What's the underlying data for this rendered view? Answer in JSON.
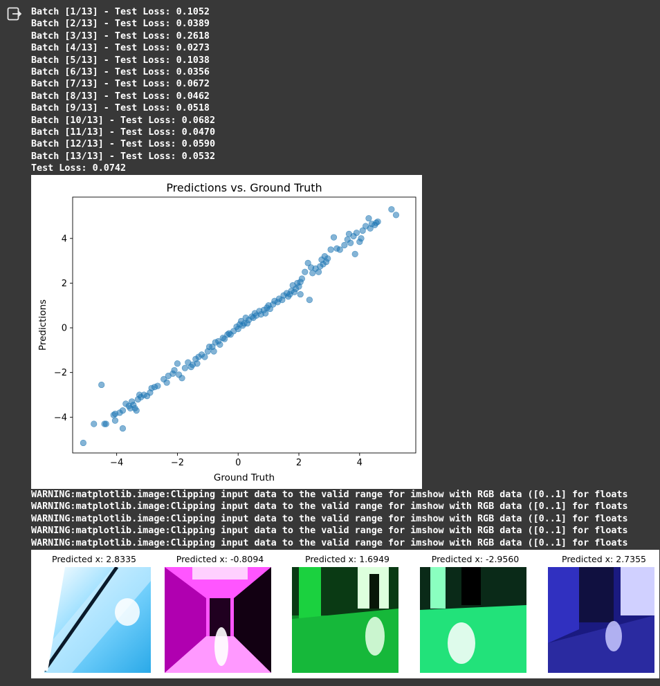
{
  "log_lines": [
    "Batch [1/13] - Test Loss: 0.1052",
    "Batch [2/13] - Test Loss: 0.0389",
    "Batch [3/13] - Test Loss: 0.2618",
    "Batch [4/13] - Test Loss: 0.0273",
    "Batch [5/13] - Test Loss: 0.1038",
    "Batch [6/13] - Test Loss: 0.0356",
    "Batch [7/13] - Test Loss: 0.0672",
    "Batch [8/13] - Test Loss: 0.0462",
    "Batch [9/13] - Test Loss: 0.0518",
    "Batch [10/13] - Test Loss: 0.0682",
    "Batch [11/13] - Test Loss: 0.0470",
    "Batch [12/13] - Test Loss: 0.0590",
    "Batch [13/13] - Test Loss: 0.0532",
    "Test Loss: 0.0742"
  ],
  "warnings": [
    "WARNING:matplotlib.image:Clipping input data to the valid range for imshow with RGB data ([0..1] for floats",
    "WARNING:matplotlib.image:Clipping input data to the valid range for imshow with RGB data ([0..1] for floats",
    "WARNING:matplotlib.image:Clipping input data to the valid range for imshow with RGB data ([0..1] for floats",
    "WARNING:matplotlib.image:Clipping input data to the valid range for imshow with RGB data ([0..1] for floats",
    "WARNING:matplotlib.image:Clipping input data to the valid range for imshow with RGB data ([0..1] for floats"
  ],
  "chart_data": {
    "type": "scatter",
    "title": "Predictions vs. Ground Truth",
    "xlabel": "Ground Truth",
    "ylabel": "Predictions",
    "xlim": [
      -5.45,
      5.85
    ],
    "ylim": [
      -5.6,
      5.85
    ],
    "xticks": [
      -4,
      -2,
      0,
      2,
      4
    ],
    "yticks": [
      -4,
      -2,
      0,
      2,
      4
    ],
    "xtick_labels": [
      "−4",
      "−2",
      "0",
      "2",
      "4"
    ],
    "ytick_labels": [
      "−4",
      "−2",
      "0",
      "2",
      "4"
    ],
    "grid": false,
    "point_color": "#1f77b4",
    "points": [
      [
        -5.1,
        -5.15
      ],
      [
        -4.75,
        -4.3
      ],
      [
        -4.5,
        -2.55
      ],
      [
        -4.4,
        -4.3
      ],
      [
        -4.35,
        -4.3
      ],
      [
        -4.1,
        -3.9
      ],
      [
        -4.05,
        -4.15
      ],
      [
        -4.05,
        -3.85
      ],
      [
        -3.9,
        -3.8
      ],
      [
        -3.8,
        -4.5
      ],
      [
        -3.8,
        -3.7
      ],
      [
        -3.7,
        -3.4
      ],
      [
        -3.6,
        -3.5
      ],
      [
        -3.55,
        -3.6
      ],
      [
        -3.5,
        -3.3
      ],
      [
        -3.45,
        -3.45
      ],
      [
        -3.4,
        -3.6
      ],
      [
        -3.35,
        -3.7
      ],
      [
        -3.3,
        -3.2
      ],
      [
        -3.25,
        -3.0
      ],
      [
        -3.2,
        -3.1
      ],
      [
        -3.1,
        -3.0
      ],
      [
        -3.0,
        -3.05
      ],
      [
        -2.9,
        -2.9
      ],
      [
        -2.85,
        -2.7
      ],
      [
        -2.75,
        -2.65
      ],
      [
        -2.65,
        -2.6
      ],
      [
        -2.45,
        -2.3
      ],
      [
        -2.35,
        -2.45
      ],
      [
        -2.3,
        -2.15
      ],
      [
        -2.15,
        -2.05
      ],
      [
        -2.1,
        -1.9
      ],
      [
        -2.0,
        -1.6
      ],
      [
        -1.95,
        -2.1
      ],
      [
        -1.85,
        -2.25
      ],
      [
        -1.75,
        -1.8
      ],
      [
        -1.65,
        -1.55
      ],
      [
        -1.55,
        -1.75
      ],
      [
        -1.5,
        -1.65
      ],
      [
        -1.4,
        -1.4
      ],
      [
        -1.35,
        -1.6
      ],
      [
        -1.3,
        -1.3
      ],
      [
        -1.2,
        -1.2
      ],
      [
        -1.1,
        -1.3
      ],
      [
        -1.0,
        -1.05
      ],
      [
        -0.95,
        -0.85
      ],
      [
        -0.85,
        -0.85
      ],
      [
        -0.8,
        -1.05
      ],
      [
        -0.75,
        -0.65
      ],
      [
        -0.65,
        -0.6
      ],
      [
        -0.6,
        -0.75
      ],
      [
        -0.5,
        -0.45
      ],
      [
        -0.45,
        -0.5
      ],
      [
        -0.35,
        -0.3
      ],
      [
        -0.3,
        -0.25
      ],
      [
        -0.25,
        -0.3
      ],
      [
        -0.15,
        -0.15
      ],
      [
        -0.05,
        0.05
      ],
      [
        0.0,
        -0.05
      ],
      [
        0.05,
        0.15
      ],
      [
        0.1,
        0.3
      ],
      [
        0.15,
        0.1
      ],
      [
        0.2,
        0.2
      ],
      [
        0.25,
        0.45
      ],
      [
        0.3,
        0.2
      ],
      [
        0.35,
        0.35
      ],
      [
        0.45,
        0.5
      ],
      [
        0.5,
        0.45
      ],
      [
        0.55,
        0.65
      ],
      [
        0.6,
        0.55
      ],
      [
        0.7,
        0.75
      ],
      [
        0.75,
        0.6
      ],
      [
        0.85,
        0.8
      ],
      [
        0.9,
        0.65
      ],
      [
        0.95,
        0.9
      ],
      [
        1.0,
        1.0
      ],
      [
        1.05,
        0.85
      ],
      [
        1.15,
        1.05
      ],
      [
        1.2,
        1.2
      ],
      [
        1.3,
        1.15
      ],
      [
        1.35,
        1.3
      ],
      [
        1.45,
        1.25
      ],
      [
        1.5,
        1.45
      ],
      [
        1.6,
        1.55
      ],
      [
        1.65,
        1.4
      ],
      [
        1.7,
        1.5
      ],
      [
        1.75,
        1.65
      ],
      [
        1.8,
        1.9
      ],
      [
        1.85,
        1.6
      ],
      [
        1.9,
        1.75
      ],
      [
        1.95,
        2.0
      ],
      [
        2.0,
        1.85
      ],
      [
        2.05,
        1.5
      ],
      [
        2.05,
        2.05
      ],
      [
        2.1,
        2.2
      ],
      [
        2.2,
        2.5
      ],
      [
        2.3,
        2.9
      ],
      [
        2.35,
        1.25
      ],
      [
        2.4,
        2.7
      ],
      [
        2.45,
        2.45
      ],
      [
        2.55,
        2.65
      ],
      [
        2.65,
        2.5
      ],
      [
        2.7,
        2.75
      ],
      [
        2.75,
        3.05
      ],
      [
        2.8,
        2.85
      ],
      [
        2.85,
        3.2
      ],
      [
        2.9,
        2.95
      ],
      [
        2.95,
        3.1
      ],
      [
        3.05,
        3.5
      ],
      [
        3.15,
        4.05
      ],
      [
        3.25,
        3.55
      ],
      [
        3.35,
        3.5
      ],
      [
        3.5,
        3.7
      ],
      [
        3.6,
        3.95
      ],
      [
        3.65,
        4.2
      ],
      [
        3.7,
        3.8
      ],
      [
        3.8,
        4.1
      ],
      [
        3.85,
        3.3
      ],
      [
        3.9,
        4.25
      ],
      [
        4.0,
        3.85
      ],
      [
        4.05,
        4.0
      ],
      [
        4.1,
        4.35
      ],
      [
        4.2,
        4.55
      ],
      [
        4.3,
        4.9
      ],
      [
        4.35,
        4.45
      ],
      [
        4.4,
        4.65
      ],
      [
        4.5,
        4.6
      ],
      [
        4.55,
        4.7
      ],
      [
        4.6,
        4.75
      ],
      [
        5.05,
        5.3
      ],
      [
        5.2,
        5.05
      ]
    ]
  },
  "image_panels": [
    {
      "caption": "Predicted x: 2.8335",
      "name": "thumb-1-cyan-floor"
    },
    {
      "caption": "Predicted x: -0.8094",
      "name": "thumb-2-magenta-corridor"
    },
    {
      "caption": "Predicted x: 1.6949",
      "name": "thumb-3-green-hallway"
    },
    {
      "caption": "Predicted x: -2.9560",
      "name": "thumb-4-green-floor"
    },
    {
      "caption": "Predicted x: 2.7355",
      "name": "thumb-5-blue-corridor"
    }
  ]
}
